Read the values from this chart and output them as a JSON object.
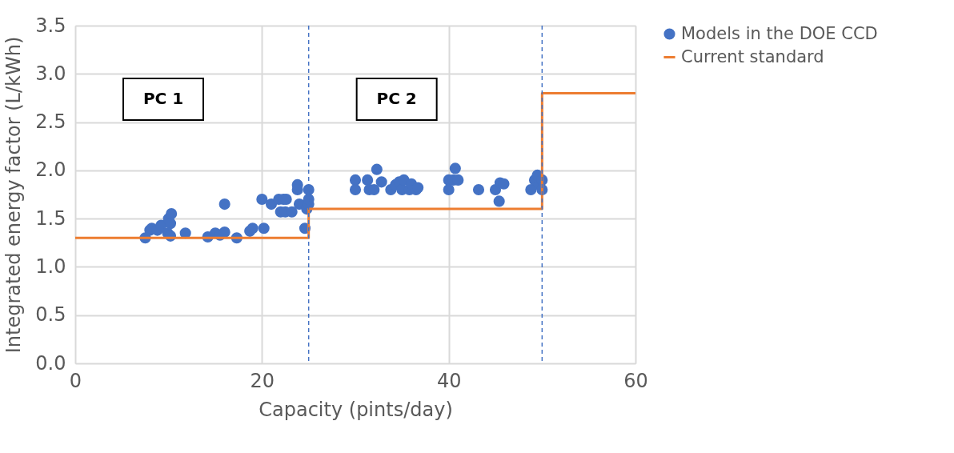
{
  "chart_data": {
    "type": "scatter",
    "xlabel": "Capacity (pints/day)",
    "ylabel": "Integrated energy factor (L/kWh)",
    "xlim": [
      0,
      60
    ],
    "xticks": [
      0,
      20,
      40,
      60
    ],
    "ylim": [
      0,
      3.5
    ],
    "yticks": [
      {
        "value": 0,
        "label": "0.0"
      },
      {
        "value": 0.5,
        "label": "0.5"
      },
      {
        "value": 1,
        "label": "1.0"
      },
      {
        "value": 1.5,
        "label": "1.5"
      },
      {
        "value": 2,
        "label": "2.0"
      },
      {
        "value": 2.5,
        "label": "2.5"
      },
      {
        "value": 3,
        "label": "3.0"
      },
      {
        "value": 3.5,
        "label": "3.5"
      }
    ],
    "grid": true,
    "legend": "right",
    "series": [
      {
        "name": "Models in the DOE CCD",
        "color": "#4472c4",
        "marker": "circle",
        "x": [
          7.5,
          8.0,
          8.2,
          8.8,
          9.2,
          10.0,
          10.2,
          10.3,
          9.9,
          10.2,
          11.8,
          14.2,
          15.0,
          15.5,
          16.0,
          16.0,
          17.3,
          18.7,
          19.0,
          20.0,
          20.2,
          21.0,
          21.8,
          22.0,
          22.3,
          22.6,
          22.5,
          23.2,
          23.8,
          23.8,
          24.0,
          24.6,
          24.8,
          25.0,
          25.0,
          25.0,
          30.0,
          30.0,
          31.3,
          31.5,
          32.0,
          32.3,
          32.8,
          33.8,
          34.3,
          34.7,
          35.0,
          35.2,
          35.8,
          36.0,
          36.5,
          36.7,
          40.0,
          40.0,
          40.7,
          40.5,
          41.0,
          43.2,
          45.0,
          45.5,
          45.4,
          45.9,
          48.8,
          49.2,
          49.5,
          49.7,
          50.0,
          50.0
        ],
        "values": [
          1.3,
          1.38,
          1.4,
          1.38,
          1.43,
          1.5,
          1.45,
          1.55,
          1.35,
          1.32,
          1.35,
          1.31,
          1.35,
          1.33,
          1.36,
          1.65,
          1.3,
          1.37,
          1.4,
          1.7,
          1.4,
          1.65,
          1.7,
          1.57,
          1.7,
          1.7,
          1.57,
          1.57,
          1.85,
          1.8,
          1.65,
          1.4,
          1.6,
          1.65,
          1.7,
          1.8,
          1.9,
          1.8,
          1.9,
          1.8,
          1.8,
          2.01,
          1.88,
          1.8,
          1.85,
          1.88,
          1.8,
          1.9,
          1.8,
          1.86,
          1.8,
          1.82,
          1.9,
          1.8,
          2.02,
          1.9,
          1.9,
          1.8,
          1.8,
          1.87,
          1.68,
          1.86,
          1.8,
          1.9,
          1.95,
          1.85,
          1.8,
          1.9
        ]
      },
      {
        "name": "Current standard",
        "type": "line",
        "color": "#ed7d31",
        "marker": "none",
        "x": [
          0,
          25,
          25,
          50,
          50,
          60
        ],
        "values": [
          1.3,
          1.3,
          1.6,
          1.6,
          2.8,
          2.8
        ]
      }
    ],
    "ref_lines": [
      {
        "axis": "x",
        "value": 25,
        "color": "#4472c4",
        "line_style": "dashed"
      },
      {
        "axis": "x",
        "value": 50,
        "color": "#4472c4",
        "line_style": "dashed"
      }
    ],
    "annotations": [
      "PC 1",
      "PC 2"
    ]
  }
}
